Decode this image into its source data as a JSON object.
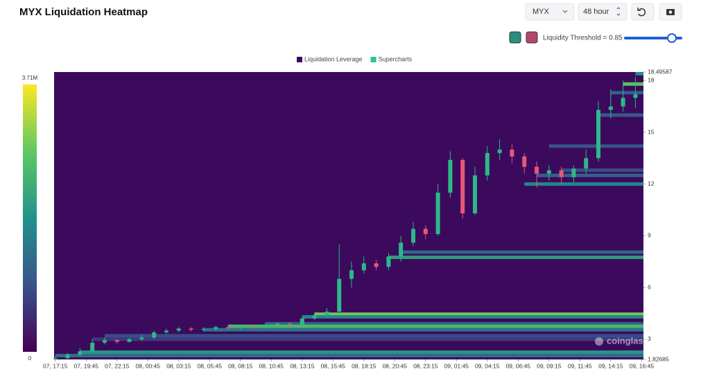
{
  "header": {
    "title": "MYX Liquidation Heatmap",
    "symbol": "MYX",
    "range": "48 hour",
    "threshold": "Liquidity Threshold = 0.85"
  },
  "chart_data": {
    "type": "heatmap-candlestick",
    "watermark": "coinglass",
    "up_color": "#2db88a",
    "down_color": "#e6587a",
    "colormap": [
      "#440154",
      "#3b528b",
      "#21918c",
      "#5ec962",
      "#fde725"
    ],
    "colorbar": {
      "lim": [
        0,
        3710000
      ],
      "ticks": [
        {
          "value": 3710000,
          "label": "3.71M"
        },
        0
      ]
    },
    "xlim": [
      -0.1,
      47.65
    ],
    "xticks": [
      {
        "value": 0,
        "label": "07, 17:15"
      },
      {
        "value": 2.5,
        "label": "07, 19:45"
      },
      {
        "value": 5,
        "label": "07, 22:15"
      },
      {
        "value": 7.5,
        "label": "08, 00:45"
      },
      {
        "value": 10,
        "label": "08, 03:15"
      },
      {
        "value": 12.5,
        "label": "08, 05:45"
      },
      {
        "value": 15,
        "label": "08, 08:15"
      },
      {
        "value": 17.5,
        "label": "08, 10:45"
      },
      {
        "value": 20,
        "label": "08, 13:15"
      },
      {
        "value": 22.5,
        "label": "08, 15:45"
      },
      {
        "value": 25,
        "label": "08, 18:15"
      },
      {
        "value": 27.5,
        "label": "08, 20:45"
      },
      {
        "value": 30,
        "label": "08, 23:15"
      },
      {
        "value": 32.5,
        "label": "09, 01:45"
      },
      {
        "value": 35,
        "label": "09, 04:15"
      },
      {
        "value": 37.5,
        "label": "09, 06:45"
      },
      {
        "value": 40,
        "label": "09, 09:15"
      },
      {
        "value": 42.5,
        "label": "09, 11:45"
      },
      {
        "value": 45,
        "label": "09, 14:15"
      },
      {
        "value": 47.5,
        "label": "09, 16:45"
      }
    ],
    "ylim": [
      1.82685,
      18.49587
    ],
    "yticks": [
      18.49587,
      18,
      15,
      12,
      9,
      6,
      3,
      1.82685
    ],
    "series": [
      {
        "name": "Liquidation Leverage",
        "color": "#3b0a5c",
        "levels": [
          4.45,
          4.3,
          3.9,
          3.75,
          3.55,
          3.2,
          3.0,
          2.25,
          2.05,
          8.05,
          7.75,
          12.0,
          12.5,
          12.8,
          14.2,
          16.0,
          17.3,
          17.8,
          18.4
        ],
        "from": [
          21,
          20,
          17,
          14,
          12,
          4,
          3,
          2,
          0,
          28,
          27,
          38,
          39,
          41,
          40,
          44,
          45,
          46,
          47
        ],
        "values": [
          3000000,
          1800000,
          1200000,
          2600000,
          1500000,
          900000,
          700000,
          2000000,
          1400000,
          1300000,
          2100000,
          1800000,
          1200000,
          900000,
          1000000,
          1100000,
          1200000,
          2800000,
          1900000
        ]
      },
      {
        "name": "Supercharts",
        "color": "#26c98a",
        "x": [
          0,
          1,
          2,
          3,
          4,
          5,
          6,
          7,
          8,
          9,
          10,
          11,
          12,
          13,
          14,
          15,
          16,
          17,
          18,
          19,
          20,
          21,
          22,
          23,
          24,
          25,
          26,
          27,
          28,
          29,
          30,
          31,
          32,
          33,
          34,
          35,
          36,
          37,
          38,
          39,
          40,
          41,
          42,
          43,
          44,
          45,
          46,
          47
        ],
        "open": [
          1.85,
          1.9,
          2.1,
          2.3,
          2.8,
          2.95,
          2.85,
          3.0,
          3.1,
          3.4,
          3.5,
          3.62,
          3.55,
          3.6,
          3.7,
          3.65,
          3.72,
          3.68,
          3.8,
          3.9,
          3.85,
          4.2,
          4.4,
          4.6,
          6.5,
          7.0,
          7.4,
          7.2,
          7.8,
          8.6,
          9.4,
          9.1,
          11.5,
          13.4,
          10.3,
          12.5,
          13.8,
          14.0,
          13.6,
          13.0,
          12.6,
          12.8,
          12.4,
          12.9,
          13.5,
          16.3,
          16.5,
          17.0
        ],
        "high": [
          2.0,
          2.2,
          2.5,
          3.0,
          3.1,
          3.0,
          3.1,
          3.25,
          3.5,
          3.6,
          3.7,
          3.7,
          3.7,
          3.8,
          3.8,
          3.8,
          3.8,
          3.9,
          4.0,
          4.0,
          4.3,
          4.5,
          4.8,
          8.5,
          7.5,
          7.8,
          7.6,
          8.0,
          9.0,
          9.8,
          9.6,
          12.0,
          13.9,
          13.5,
          13.0,
          14.2,
          14.6,
          14.3,
          13.8,
          13.3,
          13.1,
          13.0,
          13.1,
          14.0,
          16.8,
          17.5,
          18.0,
          18.2
        ],
        "low": [
          1.84,
          1.85,
          2.0,
          2.2,
          2.7,
          2.75,
          2.8,
          2.9,
          3.0,
          3.3,
          3.4,
          3.45,
          3.45,
          3.5,
          3.55,
          3.55,
          3.6,
          3.6,
          3.7,
          3.75,
          3.8,
          4.1,
          4.3,
          4.5,
          6.0,
          6.8,
          7.0,
          7.0,
          7.5,
          8.4,
          8.8,
          9.0,
          11.2,
          10.0,
          10.2,
          12.2,
          13.4,
          13.2,
          12.6,
          11.8,
          12.2,
          12.0,
          12.1,
          12.6,
          13.3,
          15.8,
          16.2,
          16.4
        ],
        "close": [
          1.9,
          2.1,
          2.3,
          2.8,
          2.95,
          2.85,
          3.0,
          3.1,
          3.4,
          3.5,
          3.62,
          3.55,
          3.6,
          3.7,
          3.65,
          3.72,
          3.68,
          3.8,
          3.9,
          3.85,
          4.2,
          4.4,
          4.6,
          6.5,
          7.0,
          7.4,
          7.2,
          7.8,
          8.6,
          9.4,
          9.1,
          11.5,
          13.4,
          10.3,
          12.5,
          13.8,
          14.0,
          13.6,
          13.0,
          12.6,
          12.8,
          12.4,
          12.9,
          13.5,
          16.3,
          16.5,
          17.0,
          17.2
        ]
      }
    ]
  }
}
